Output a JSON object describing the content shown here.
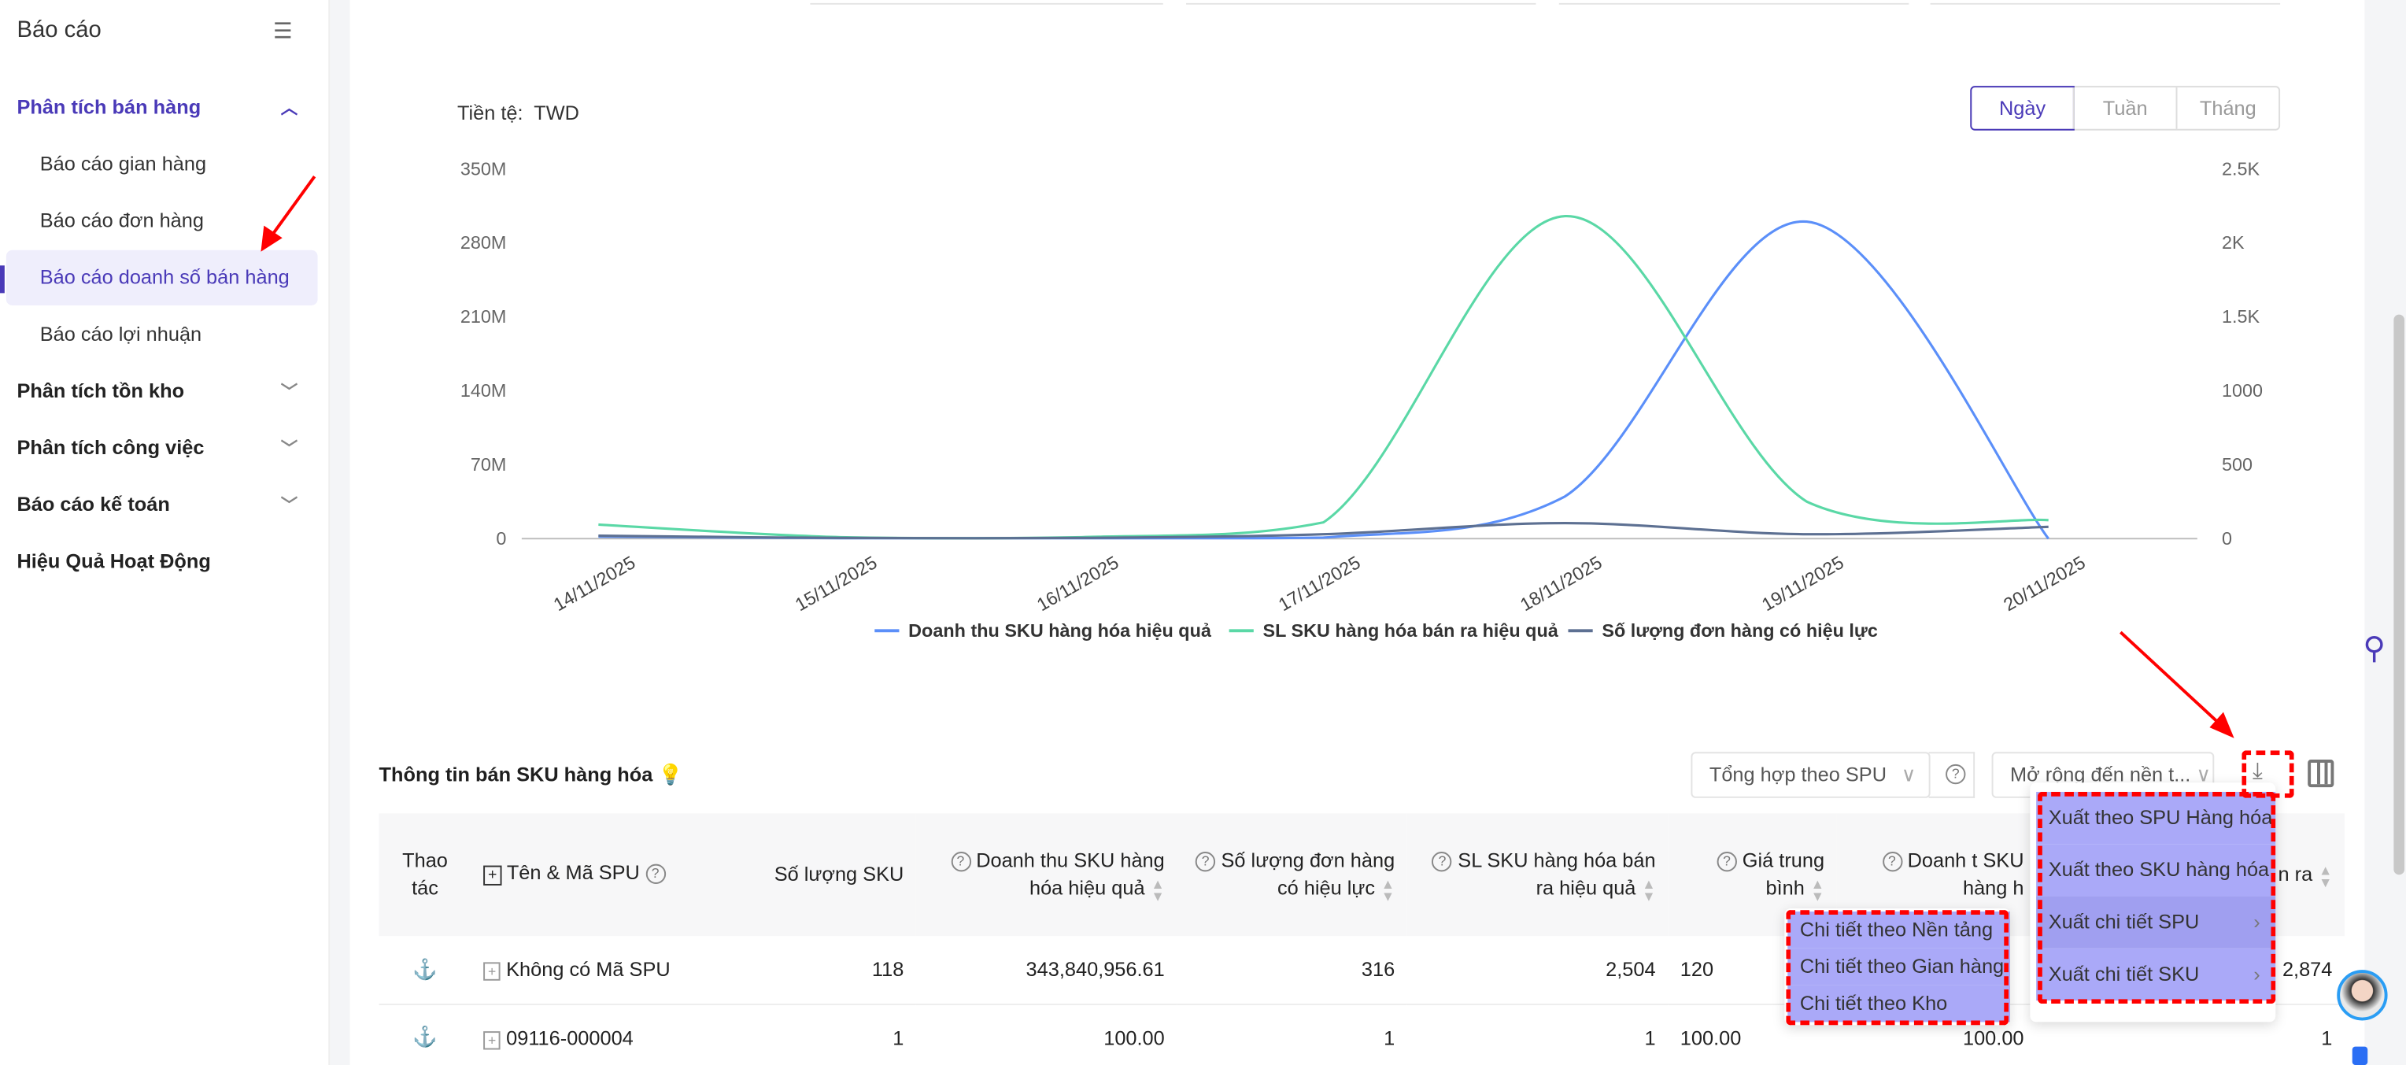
{
  "sidebar": {
    "title": "Báo cáo",
    "groups": [
      {
        "label": "Phân tích bán hàng",
        "items": [
          "Báo cáo gian hàng",
          "Báo cáo đơn hàng",
          "Báo cáo doanh số bán hàng",
          "Báo cáo lợi nhuận"
        ]
      },
      {
        "label": "Phân tích tồn kho"
      },
      {
        "label": "Phân tích công việc"
      },
      {
        "label": "Báo cáo kế toán"
      },
      {
        "label": "Hiệu Quả Hoạt Động"
      }
    ]
  },
  "chart": {
    "currency_label": "Tiền tệ:",
    "currency": "TWD",
    "periods": [
      "Ngày",
      "Tuần",
      "Tháng"
    ]
  },
  "chart_data": {
    "type": "line",
    "x": [
      "14/11/2025",
      "15/11/2025",
      "16/11/2025",
      "17/11/2025",
      "18/11/2025",
      "19/11/2025",
      "20/11/2025"
    ],
    "yleft": {
      "ticks": [
        "0",
        "70M",
        "140M",
        "210M",
        "280M",
        "350M"
      ],
      "range": [
        0,
        350000000
      ]
    },
    "yright": {
      "ticks": [
        "0",
        "500",
        "1000",
        "1.5K",
        "2K",
        "2.5K"
      ],
      "range": [
        0,
        2500
      ]
    },
    "series": [
      {
        "name": "Doanh thu SKU hàng hóa hiệu quả",
        "axis": "left",
        "color": "#5b8ff9",
        "values": [
          2000000,
          500000,
          500000,
          1000000,
          40000000,
          300000000,
          0
        ]
      },
      {
        "name": "SL SKU hàng hóa bán ra hiệu quả",
        "axis": "right",
        "color": "#5ad8a6",
        "values": [
          95,
          10,
          10,
          110,
          2180,
          250,
          125
        ]
      },
      {
        "name": "Số lượng đơn hàng có hiệu lực",
        "axis": "right",
        "color": "#5d7092",
        "values": [
          20,
          5,
          5,
          30,
          105,
          30,
          80
        ]
      }
    ],
    "legend": "bottom"
  },
  "section": {
    "title": "Thông tin bán SKU hàng hóa",
    "aggregate": "Tổng hợp theo SPU",
    "expand": "Mở rộng đến nền t..."
  },
  "table": {
    "headers": [
      "Thao tác",
      "Tên & Mã SPU",
      "Số lượng SKU",
      "Doanh thu SKU hàng hóa hiệu quả",
      "Số lượng đơn hàng có hiệu lực",
      "SL SKU hàng hóa bán ra hiệu quả",
      "Giá trung bình",
      "Doanh t SKU hàng h",
      "U n ra"
    ],
    "rows": [
      [
        "Không có Mã SPU",
        "118",
        "343,840,956.61",
        "316",
        "2,504",
        "120",
        "",
        "2,874"
      ],
      [
        "09116-000004",
        "1",
        "100.00",
        "1",
        "1",
        "100.00",
        "100.00",
        "1"
      ]
    ]
  },
  "export_menu": [
    "Xuất theo SPU Hàng hóa",
    "Xuất theo SKU hàng hóa",
    "Xuất chi tiết SPU",
    "Xuất chi tiết SKU"
  ],
  "sub_menu": [
    "Chi tiết theo Nền tảng",
    "Chi tiết theo Gian hàng",
    "Chi tiết theo Kho"
  ]
}
